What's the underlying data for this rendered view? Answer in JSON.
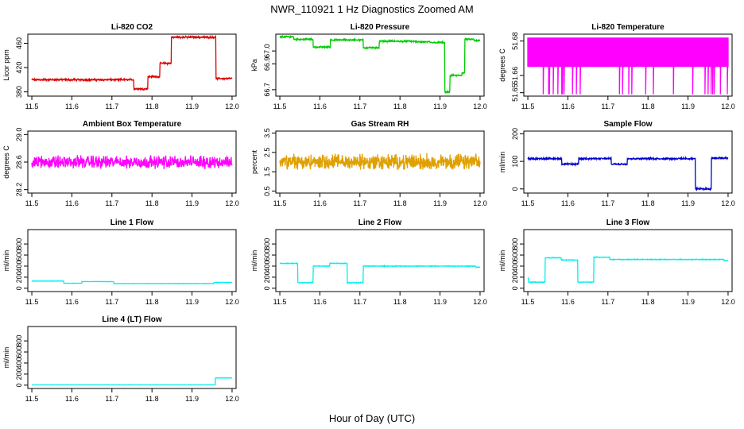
{
  "figure": {
    "title": "NWR_110921  1 Hz Diagnostics Zoomed AM",
    "xlabel": "Hour of Day (UTC)"
  },
  "chart_data": [
    {
      "type": "line",
      "title": "Li-820 CO2",
      "ylabel": "Licor ppm",
      "color": "#dd0000",
      "noise": 1.5,
      "xlim": [
        11.5,
        12.0
      ],
      "xticks": [
        11.5,
        11.6,
        11.7,
        11.8,
        11.9,
        12.0
      ],
      "xtick_labels": [
        "11.5",
        "11.6",
        "11.7",
        "11.8",
        "11.9",
        "12.0"
      ],
      "ylim": [
        373,
        475
      ],
      "yticks": [
        380,
        420,
        460
      ],
      "ytick_labels": [
        "380",
        "420",
        "460"
      ],
      "series": [
        {
          "name": "CO2",
          "steps": [
            [
              11.5,
              400
            ],
            [
              11.755,
              385
            ],
            [
              11.79,
              405
            ],
            [
              11.82,
              427
            ],
            [
              11.848,
              470
            ],
            [
              11.96,
              402
            ]
          ]
        }
      ]
    },
    {
      "type": "line",
      "title": "Li-820 Pressure",
      "ylabel": "kPa",
      "color": "#00cc00",
      "noise": 0.006,
      "xlim": [
        11.5,
        12.0
      ],
      "xticks": [
        11.5,
        11.6,
        11.7,
        11.8,
        11.9,
        12.0
      ],
      "xtick_labels": [
        "11.5",
        "11.6",
        "11.7",
        "11.8",
        "11.9",
        "12.0"
      ],
      "ylim": [
        66.65,
        67.13
      ],
      "yticks": [
        66.7,
        66.9,
        67.0
      ],
      "ytick_labels": [
        "66.7",
        "66.9",
        "67.0"
      ],
      "series": [
        {
          "name": "Pressure",
          "steps": [
            [
              11.5,
              67.11
            ],
            [
              11.535,
              67.09
            ],
            [
              11.583,
              67.03
            ],
            [
              11.626,
              67.085
            ],
            [
              11.708,
              67.025
            ],
            [
              11.748,
              67.075
            ],
            [
              11.84,
              67.07
            ],
            [
              11.875,
              67.065
            ],
            [
              11.912,
              66.68
            ],
            [
              11.925,
              66.81
            ],
            [
              11.955,
              66.83
            ],
            [
              11.962,
              67.09
            ],
            [
              11.985,
              67.08
            ]
          ]
        }
      ]
    },
    {
      "type": "line",
      "title": "Li-820 Temperature",
      "ylabel": "degrees C",
      "color": "#ff00ff",
      "noise": 0,
      "xlim": [
        11.5,
        12.0
      ],
      "xticks": [
        11.5,
        11.6,
        11.7,
        11.8,
        11.9,
        12.0
      ],
      "xtick_labels": [
        "11.5",
        "11.6",
        "11.7",
        "11.8",
        "11.9",
        "12.0"
      ],
      "ylim": [
        51.648,
        51.684
      ],
      "yticks": [
        51.65,
        51.66,
        51.68
      ],
      "ytick_labels": [
        "51.65",
        "51.66",
        "51.68"
      ],
      "series": [
        {
          "name": "Temperature",
          "levels": [
            51.665,
            51.682
          ],
          "dip": 51.649
        }
      ]
    },
    {
      "type": "line",
      "title": "Ambient Box Temperature",
      "ylabel": "degrees C",
      "color": "#ff00ff",
      "noise": 0.09,
      "xlim": [
        11.5,
        12.0
      ],
      "xticks": [
        11.5,
        11.6,
        11.7,
        11.8,
        11.9,
        12.0
      ],
      "xtick_labels": [
        "11.5",
        "11.6",
        "11.7",
        "11.8",
        "11.9",
        "12.0"
      ],
      "ylim": [
        28.15,
        29.05
      ],
      "yticks": [
        28.2,
        28.6,
        29.0
      ],
      "ytick_labels": [
        "28.2",
        "28.6",
        "29.0"
      ],
      "series": [
        {
          "name": "Box temperature",
          "steps": [
            [
              11.5,
              28.6
            ]
          ]
        }
      ]
    },
    {
      "type": "line",
      "title": "Gas Stream RH",
      "ylabel": "percent",
      "color": "#e0a000",
      "noise": 0.4,
      "xlim": [
        11.5,
        12.0
      ],
      "xticks": [
        11.5,
        11.6,
        11.7,
        11.8,
        11.9,
        12.0
      ],
      "xtick_labels": [
        "11.5",
        "11.6",
        "11.7",
        "11.8",
        "11.9",
        "12.0"
      ],
      "ylim": [
        0.4,
        3.6
      ],
      "yticks": [
        0.5,
        1.5,
        2.5,
        3.5
      ],
      "ytick_labels": [
        "0.5",
        "1.5",
        "2.5",
        "3.5"
      ],
      "series": [
        {
          "name": "RH",
          "steps": [
            [
              11.5,
              2.0
            ]
          ]
        }
      ]
    },
    {
      "type": "line",
      "title": "Sample Flow",
      "ylabel": "ml/min",
      "color": "#0000cc",
      "noise": 3,
      "xlim": [
        11.5,
        12.0
      ],
      "xticks": [
        11.5,
        11.6,
        11.7,
        11.8,
        11.9,
        12.0
      ],
      "xtick_labels": [
        "11.5",
        "11.6",
        "11.7",
        "11.8",
        "11.9",
        "12.0"
      ],
      "ylim": [
        -15,
        210
      ],
      "yticks": [
        0,
        100,
        200
      ],
      "ytick_labels": [
        "0",
        "100",
        "200"
      ],
      "series": [
        {
          "name": "Sample flow",
          "steps": [
            [
              11.5,
              110
            ],
            [
              11.585,
              90
            ],
            [
              11.627,
              110
            ],
            [
              11.708,
              90
            ],
            [
              11.748,
              110
            ],
            [
              11.918,
              0
            ],
            [
              11.958,
              112
            ]
          ]
        }
      ]
    },
    {
      "type": "line",
      "title": "Line 1 Flow",
      "ylabel": "ml/min",
      "color": "#00eeee",
      "noise": 3,
      "xlim": [
        11.5,
        12.0
      ],
      "xticks": [
        11.5,
        11.6,
        11.7,
        11.8,
        11.9,
        12.0
      ],
      "xtick_labels": [
        "11.5",
        "11.6",
        "11.7",
        "11.8",
        "11.9",
        "12.0"
      ],
      "ylim": [
        -60,
        1060
      ],
      "yticks": [
        0,
        200,
        400,
        600,
        800
      ],
      "ytick_labels": [
        "0",
        "200",
        "400",
        "600",
        "800"
      ],
      "series": [
        {
          "name": "Line 1",
          "steps": [
            [
              11.5,
              130
            ],
            [
              11.58,
              90
            ],
            [
              11.625,
              120
            ],
            [
              11.705,
              85
            ],
            [
              11.955,
              105
            ]
          ]
        }
      ]
    },
    {
      "type": "line",
      "title": "Line 2 Flow",
      "ylabel": "ml/min",
      "color": "#00eeee",
      "noise": 6,
      "xlim": [
        11.5,
        12.0
      ],
      "xticks": [
        11.5,
        11.6,
        11.7,
        11.8,
        11.9,
        12.0
      ],
      "xtick_labels": [
        "11.5",
        "11.6",
        "11.7",
        "11.8",
        "11.9",
        "12.0"
      ],
      "ylim": [
        -60,
        1060
      ],
      "yticks": [
        0,
        200,
        400,
        600,
        800
      ],
      "ytick_labels": [
        "0",
        "200",
        "400",
        "600",
        "800"
      ],
      "series": [
        {
          "name": "Line 2",
          "steps": [
            [
              11.5,
              450
            ],
            [
              11.545,
              100
            ],
            [
              11.583,
              400
            ],
            [
              11.625,
              450
            ],
            [
              11.668,
              100
            ],
            [
              11.708,
              400
            ],
            [
              11.99,
              380
            ]
          ]
        }
      ]
    },
    {
      "type": "line",
      "title": "Line 3 Flow",
      "ylabel": "ml/min",
      "color": "#00eeee",
      "noise": 6,
      "xlim": [
        11.5,
        12.0
      ],
      "xticks": [
        11.5,
        11.6,
        11.7,
        11.8,
        11.9,
        12.0
      ],
      "xtick_labels": [
        "11.5",
        "11.6",
        "11.7",
        "11.8",
        "11.9",
        "12.0"
      ],
      "ylim": [
        -60,
        1060
      ],
      "yticks": [
        0,
        200,
        400,
        600,
        800
      ],
      "ytick_labels": [
        "0",
        "200",
        "400",
        "600",
        "800"
      ],
      "series": [
        {
          "name": "Line 3",
          "steps": [
            [
              11.5,
              180
            ],
            [
              11.502,
              110
            ],
            [
              11.543,
              550
            ],
            [
              11.583,
              510
            ],
            [
              11.625,
              110
            ],
            [
              11.665,
              560
            ],
            [
              11.705,
              520
            ],
            [
              11.99,
              500
            ]
          ]
        }
      ]
    },
    {
      "type": "line",
      "title": "Line 4 (LT) Flow",
      "ylabel": "ml/min",
      "color": "#00eeee",
      "noise": 2,
      "xlim": [
        11.5,
        12.0
      ],
      "xticks": [
        11.5,
        11.6,
        11.7,
        11.8,
        11.9,
        12.0
      ],
      "xtick_labels": [
        "11.5",
        "11.6",
        "11.7",
        "11.8",
        "11.9",
        "12.0"
      ],
      "ylim": [
        -60,
        1060
      ],
      "yticks": [
        0,
        200,
        400,
        600,
        800
      ],
      "ytick_labels": [
        "0",
        "200",
        "400",
        "600",
        "800"
      ],
      "series": [
        {
          "name": "Line 4 (LT)",
          "steps": [
            [
              11.5,
              5
            ],
            [
              11.958,
              130
            ]
          ]
        }
      ]
    }
  ]
}
